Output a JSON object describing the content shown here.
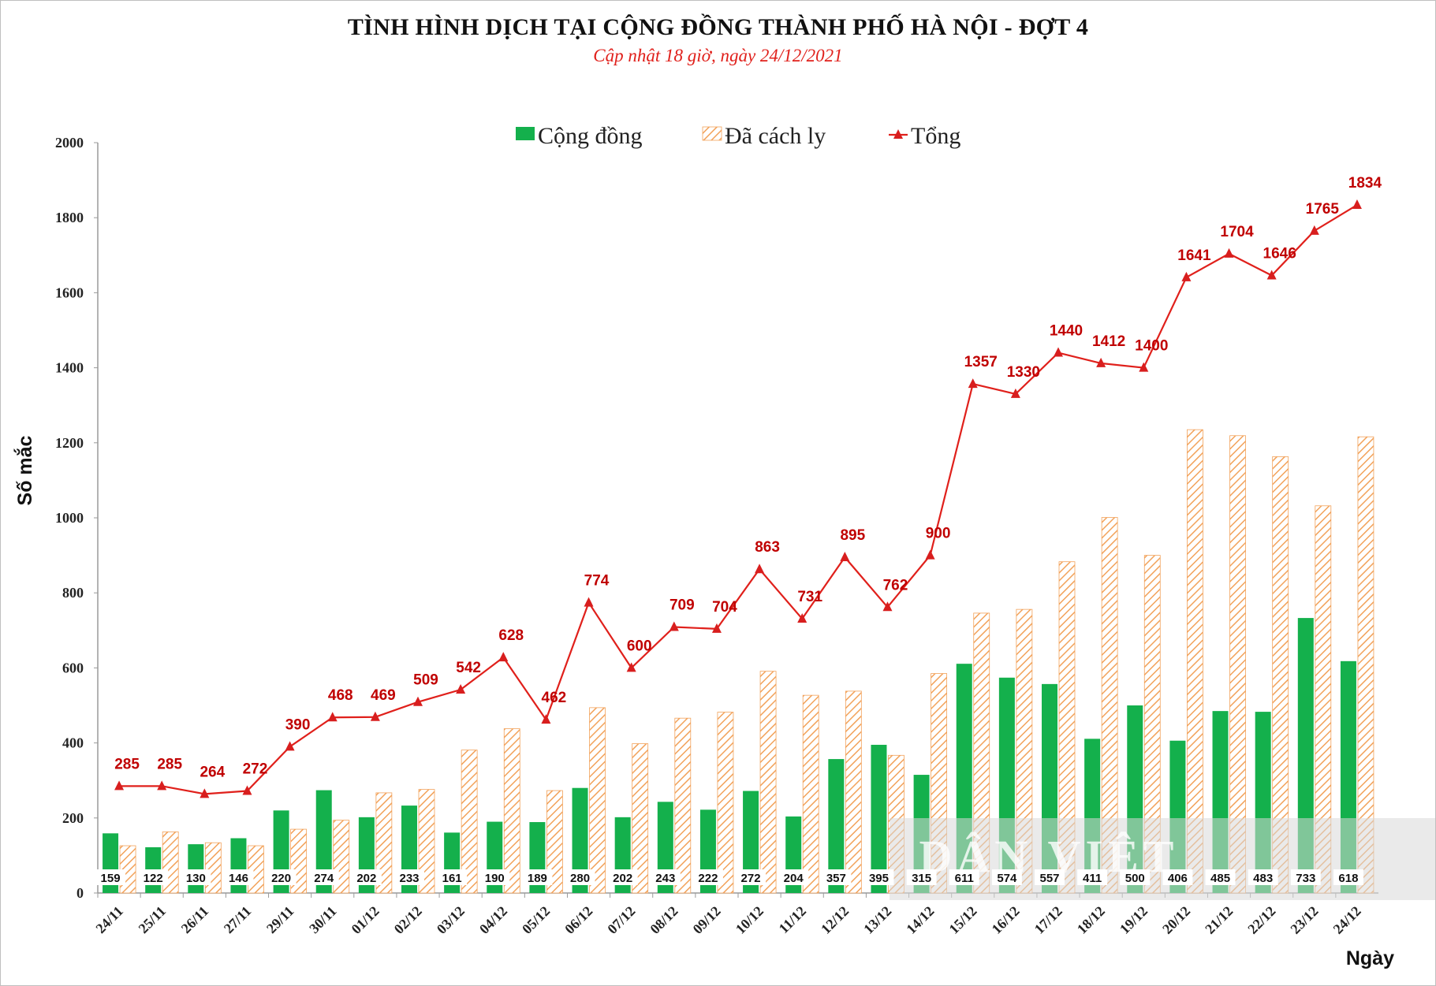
{
  "chart_data": {
    "type": "bar",
    "title": "TÌNH HÌNH DỊCH TẠI CỘNG ĐỒNG THÀNH PHỐ HÀ NỘI - ĐỢT 4",
    "subtitle": "Cập nhật 18 giờ, ngày 24/12/2021",
    "xlabel": "Ngày",
    "ylabel": "Số mắc",
    "ylim": [
      0,
      2000
    ],
    "yticks": [
      0,
      200,
      400,
      600,
      800,
      1000,
      1200,
      1400,
      1600,
      1800,
      2000
    ],
    "legend_position": "top-center",
    "grid": false,
    "categories": [
      "24/11",
      "25/11",
      "26/11",
      "27/11",
      "29/11",
      "30/11",
      "01/12",
      "02/12",
      "03/12",
      "04/12",
      "05/12",
      "06/12",
      "07/12",
      "08/12",
      "09/12",
      "10/12",
      "11/12",
      "12/12",
      "13/12",
      "14/12",
      "15/12",
      "16/12",
      "17/12",
      "18/12",
      "19/12",
      "20/12",
      "21/12",
      "22/12",
      "23/12",
      "24/12"
    ],
    "series": [
      {
        "name": "Cộng đồng",
        "type": "bar",
        "color": "#14b04c",
        "values": [
          159,
          122,
          130,
          146,
          220,
          274,
          202,
          233,
          161,
          190,
          189,
          280,
          202,
          243,
          222,
          272,
          204,
          357,
          395,
          315,
          611,
          574,
          557,
          411,
          500,
          406,
          485,
          483,
          733,
          618
        ]
      },
      {
        "name": "Đã cách ly",
        "type": "bar-hatched",
        "color": "#f2a25a",
        "values": [
          126,
          163,
          134,
          126,
          170,
          194,
          267,
          276,
          381,
          438,
          273,
          494,
          398,
          466,
          482,
          591,
          527,
          538,
          367,
          585,
          746,
          756,
          883,
          1001,
          900,
          1235,
          1219,
          1163,
          1032,
          1216
        ]
      },
      {
        "name": "Tổng",
        "type": "line",
        "color": "#e0201b",
        "values": [
          285,
          285,
          264,
          272,
          390,
          468,
          469,
          509,
          542,
          628,
          462,
          774,
          600,
          709,
          704,
          863,
          731,
          895,
          762,
          900,
          1357,
          1330,
          1440,
          1412,
          1400,
          1641,
          1704,
          1646,
          1765,
          1834
        ]
      }
    ]
  },
  "watermark": "DÂN VIỆT"
}
